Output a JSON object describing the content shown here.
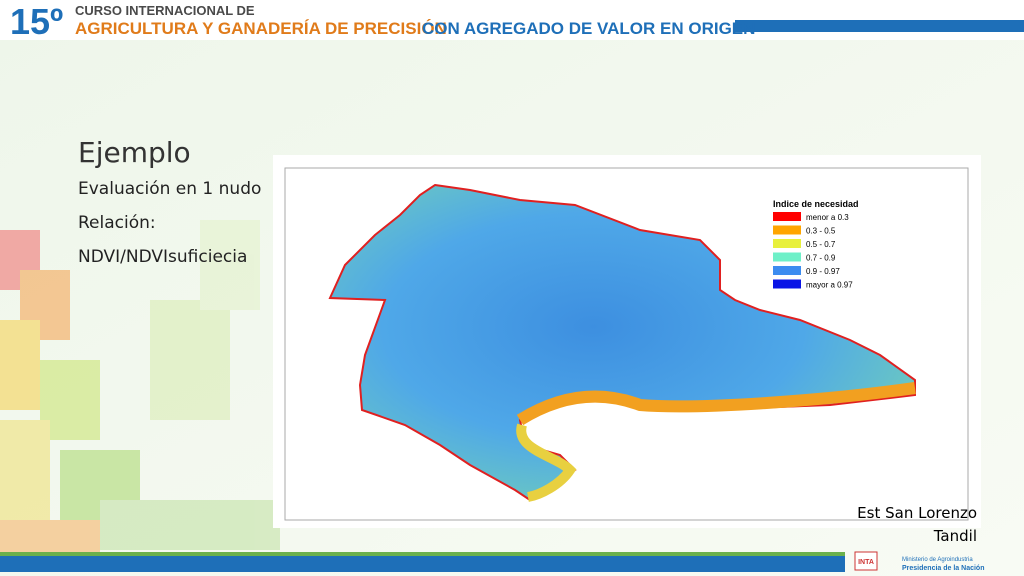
{
  "header": {
    "number": "15º",
    "line1": "CURSO INTERNACIONAL DE",
    "line2a": "AGRICULTURA Y GANADERÍA DE PRECISIÓN",
    "line2b": "CON AGREGADO DE VALOR EN ORIGEN"
  },
  "slide": {
    "title": "Ejemplo",
    "bullets": [
      "Evaluación en 1 nudo",
      "Relación:",
      "NDVI/NDVIsuficiecia"
    ]
  },
  "map": {
    "legend_title": "Indice de necesidad",
    "legend": [
      {
        "label": "menor a  0.3",
        "color": "#ff0000"
      },
      {
        "label": "0.3 - 0.5",
        "color": "#ffa500"
      },
      {
        "label": "0.5 - 0.7",
        "color": "#e8f03c"
      },
      {
        "label": "0.7 - 0.9",
        "color": "#6ef0c8"
      },
      {
        "label": "0.9 - 0.97",
        "color": "#3c8cf0"
      },
      {
        "label": "mayor a 0.97",
        "color": "#0a14e6"
      }
    ]
  },
  "caption": [
    "Est San Lorenzo",
    "Tandil"
  ],
  "footer": {
    "logo1": "INTA",
    "ministry": "Ministerio de Agroindustria",
    "presidency": "Presidencia de la Nación"
  }
}
